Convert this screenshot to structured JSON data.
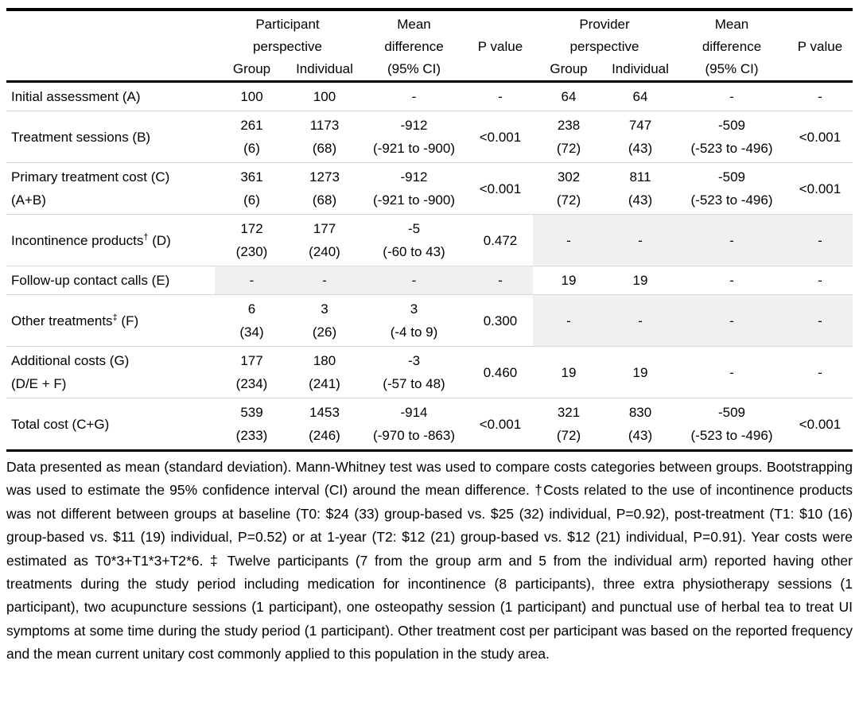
{
  "table": {
    "header": {
      "participant": [
        "Participant",
        "perspective"
      ],
      "provider": [
        "Provider",
        "perspective"
      ],
      "mean_diff": [
        "Mean",
        "difference",
        "(95% CI)"
      ],
      "p_value": "P value",
      "group": "Group",
      "individual": "Individual"
    },
    "rows": [
      {
        "label": [
          {
            "text": "Initial assessment (A)"
          }
        ],
        "cells": [
          [
            "100"
          ],
          [
            "100"
          ],
          [
            "-"
          ],
          [
            "-"
          ],
          [
            "64"
          ],
          [
            "64"
          ],
          [
            "-"
          ],
          [
            "-"
          ]
        ],
        "shaded": []
      },
      {
        "label": [
          {
            "text": "Treatment sessions (B)"
          }
        ],
        "cells": [
          [
            "261",
            "(6)"
          ],
          [
            "1173",
            "(68)"
          ],
          [
            "-912",
            "(-921 to -900)"
          ],
          [
            "<0.001"
          ],
          [
            "238",
            "(72)"
          ],
          [
            "747",
            "(43)"
          ],
          [
            "-509",
            "(-523 to -496)"
          ],
          [
            "<0.001"
          ]
        ],
        "shaded": []
      },
      {
        "label": [
          {
            "text": "Primary treatment cost (C)"
          },
          {
            "text": "(A+B)"
          }
        ],
        "cells": [
          [
            "361",
            "(6)"
          ],
          [
            "1273",
            "(68)"
          ],
          [
            "-912",
            "(-921 to -900)"
          ],
          [
            "<0.001"
          ],
          [
            "302",
            "(72)"
          ],
          [
            "811",
            "(43)"
          ],
          [
            "-509",
            "(-523 to -496)"
          ],
          [
            "<0.001"
          ]
        ],
        "shaded": []
      },
      {
        "label": [
          {
            "text": "Incontinence products",
            "sup": "†",
            "after": " (D)"
          }
        ],
        "cells": [
          [
            "172",
            "(230)"
          ],
          [
            "177",
            "(240)"
          ],
          [
            "-5",
            "(-60 to 43)"
          ],
          [
            "0.472"
          ],
          [
            "-"
          ],
          [
            "-"
          ],
          [
            "-"
          ],
          [
            "-"
          ]
        ],
        "shaded": [
          4,
          5,
          6,
          7
        ]
      },
      {
        "label": [
          {
            "text": "Follow-up contact calls (E)"
          }
        ],
        "cells": [
          [
            "-"
          ],
          [
            "-"
          ],
          [
            "-"
          ],
          [
            "-"
          ],
          [
            "19"
          ],
          [
            "19"
          ],
          [
            "-"
          ],
          [
            "-"
          ]
        ],
        "shaded": [
          0,
          1,
          2,
          3
        ]
      },
      {
        "label": [
          {
            "text": "Other treatments",
            "sup": "‡",
            "after": " (F)"
          }
        ],
        "cells": [
          [
            "6",
            "(34)"
          ],
          [
            "3",
            "(26)"
          ],
          [
            "3",
            "(-4 to 9)"
          ],
          [
            "0.300"
          ],
          [
            "-"
          ],
          [
            "-"
          ],
          [
            "-"
          ],
          [
            "-"
          ]
        ],
        "shaded": [
          4,
          5,
          6,
          7
        ]
      },
      {
        "label": [
          {
            "text": "Additional costs (G)"
          },
          {
            "text": "(D/E + F)"
          }
        ],
        "cells": [
          [
            "177",
            "(234)"
          ],
          [
            "180",
            "(241)"
          ],
          [
            "-3",
            "(-57 to 48)"
          ],
          [
            "0.460"
          ],
          [
            "19"
          ],
          [
            "19"
          ],
          [
            "-"
          ],
          [
            "-"
          ]
        ],
        "shaded": []
      },
      {
        "label": [
          {
            "text": "Total cost (C+G)"
          }
        ],
        "cells": [
          [
            "539",
            "(233)"
          ],
          [
            "1453",
            "(246)"
          ],
          [
            "-914",
            "(-970 to -863)"
          ],
          [
            "<0.001"
          ],
          [
            "321",
            "(72)"
          ],
          [
            "830",
            "(43)"
          ],
          [
            "-509",
            "(-523 to -496)"
          ],
          [
            "<0.001"
          ]
        ],
        "shaded": []
      }
    ]
  },
  "footnote": "Data presented as mean (standard deviation). Mann-Whitney test was used to compare costs categories between groups. Bootstrapping was used to estimate the 95% confidence interval (CI) around the mean difference. †Costs related to the use of incontinence products was not different between groups at baseline (T0: $24 (33) group-based vs. $25 (32) individual, P=0.92), post-treatment (T1: $10 (16) group-based vs. $11 (19) individual, P=0.52) or at 1-year (T2: $12 (21) group-based vs. $12 (21) individual, P=0.91). Year costs were estimated as T0*3+T1*3+T2*6. ‡ Twelve participants (7 from the group arm and 5 from the individual arm) reported having other treatments during the study period including medication for incontinence (8 participants), three extra physiotherapy sessions (1 participant), two acupuncture sessions (1 participant), one osteopathy session (1 participant) and punctual use of herbal tea to treat UI symptoms at some time during the study period (1 participant). Other treatment cost per participant was based on the reported frequency and the mean current unitary cost commonly applied to this population in the study area."
}
